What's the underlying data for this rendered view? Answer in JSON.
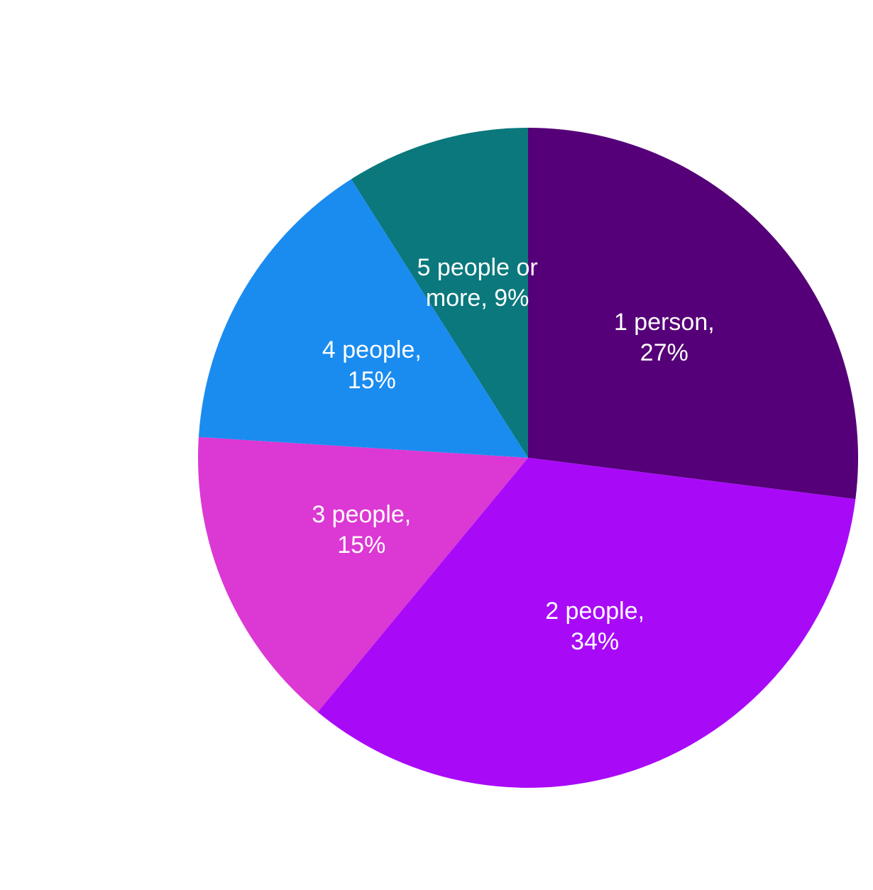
{
  "chart_data": {
    "type": "pie",
    "categories": [
      "1 person,",
      "2 people,",
      "3 people,",
      "4 people,",
      "5 people or more,"
    ],
    "values": [
      27,
      34,
      15,
      15,
      9
    ],
    "value_labels": [
      "27%",
      "34%",
      "15%",
      "15%",
      "9%"
    ],
    "colors": [
      "#550078",
      "#a80af8",
      "#dc38d4",
      "#1a8cf0",
      "#0a787c"
    ]
  }
}
